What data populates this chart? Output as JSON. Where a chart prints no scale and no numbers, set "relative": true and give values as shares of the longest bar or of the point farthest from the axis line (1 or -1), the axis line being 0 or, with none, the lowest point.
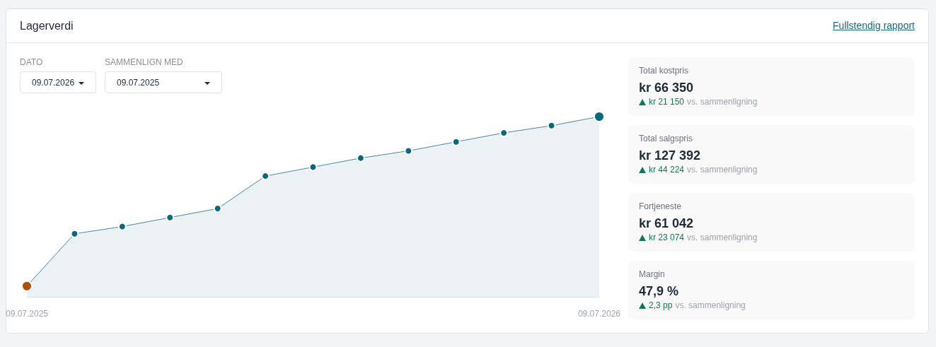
{
  "chart_data": [
    {
      "type": "area",
      "title": "Lagerverdi",
      "annotations": [
        "Fullstendig rapport",
        "DATO",
        "09.07.2026",
        "SAMMENLIGN MED",
        "09.07.2025"
      ],
      "categories": [
        "09.07.2025",
        null,
        null,
        null,
        null,
        null,
        null,
        null,
        null,
        null,
        null,
        null,
        "09.07.2026"
      ],
      "values": [
        0.06,
        0.35,
        0.39,
        0.44,
        0.49,
        0.67,
        0.72,
        0.77,
        0.81,
        0.86,
        0.91,
        0.95,
        1
      ],
      "color": "#0b6680",
      "colors": [
        "#b34f0a",
        "#0b6680",
        "#0b6680",
        "#0b6680",
        "#0b6680",
        "#0b6680",
        "#0b6680",
        "#0b6680",
        "#0b6680",
        "#0b6680",
        "#0b6680",
        "#0b6680",
        "#0b6680"
      ],
      "relative": true,
      "marker": "circle"
    },
    {
      "type": "other",
      "annotations": [
        "Total kostpris",
        "kr 66 350",
        "kr 21 150",
        "vs. sammenligning",
        "Total salgspris",
        "kr 127 392",
        "kr 44 224",
        "vs. sammenligning",
        "Fortjeneste",
        "kr 61 042",
        "kr 23 074",
        "vs. sammenligning",
        "Margin",
        "47,9 %",
        "2,3 pp",
        "vs. sammenligning"
      ]
    }
  ]
}
